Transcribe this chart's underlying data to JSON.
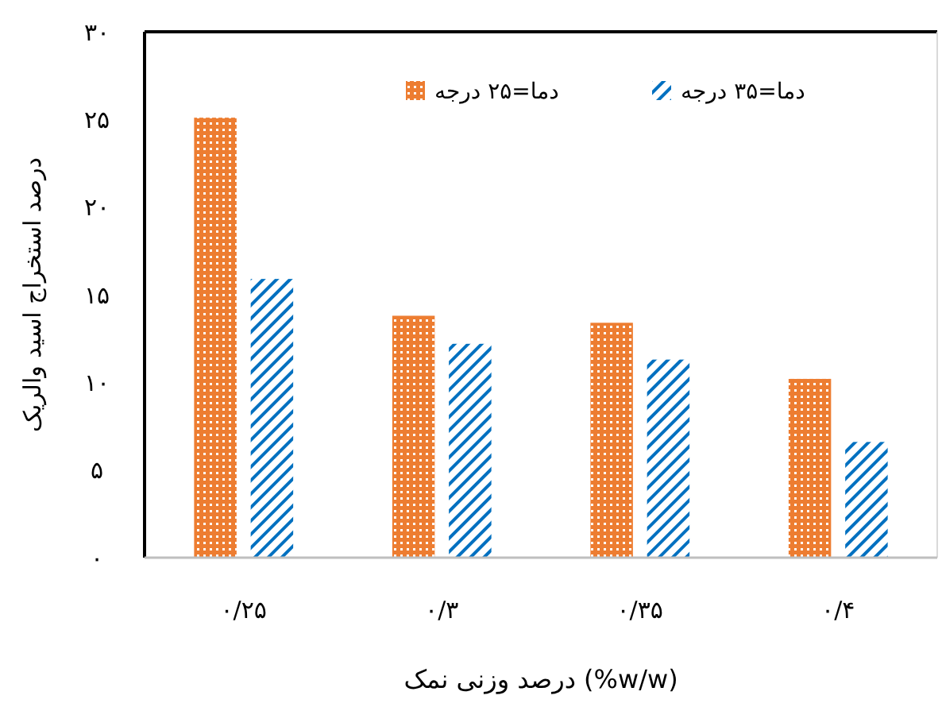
{
  "chart_data": {
    "type": "bar",
    "xlabel": "درصد وزنی نمک (%w/w)",
    "ylabel": "درصد استخراج اسید والریک",
    "categories": [
      "۰/۲۵",
      "۰/۳",
      "۰/۳۵",
      "۰/۴"
    ],
    "series": [
      {
        "name": "دما=۲۵ درجه",
        "color": "#ed7d31",
        "values": [
          25.1,
          13.8,
          13.4,
          10.2
        ]
      },
      {
        "name": "دما=۳۵ درجه",
        "color": "#0070c0",
        "values": [
          15.9,
          12.2,
          11.3,
          6.6
        ]
      }
    ],
    "ylim": [
      0,
      30
    ],
    "yticks": [
      {
        "value": 0,
        "label": "۰"
      },
      {
        "value": 5,
        "label": "۵"
      },
      {
        "value": 10,
        "label": "۱۰"
      },
      {
        "value": 15,
        "label": "۱۵"
      },
      {
        "value": 20,
        "label": "۲۰"
      },
      {
        "value": 25,
        "label": "۲۵"
      },
      {
        "value": 30,
        "label": "۳۰"
      }
    ],
    "grid": false,
    "legend": "top"
  }
}
